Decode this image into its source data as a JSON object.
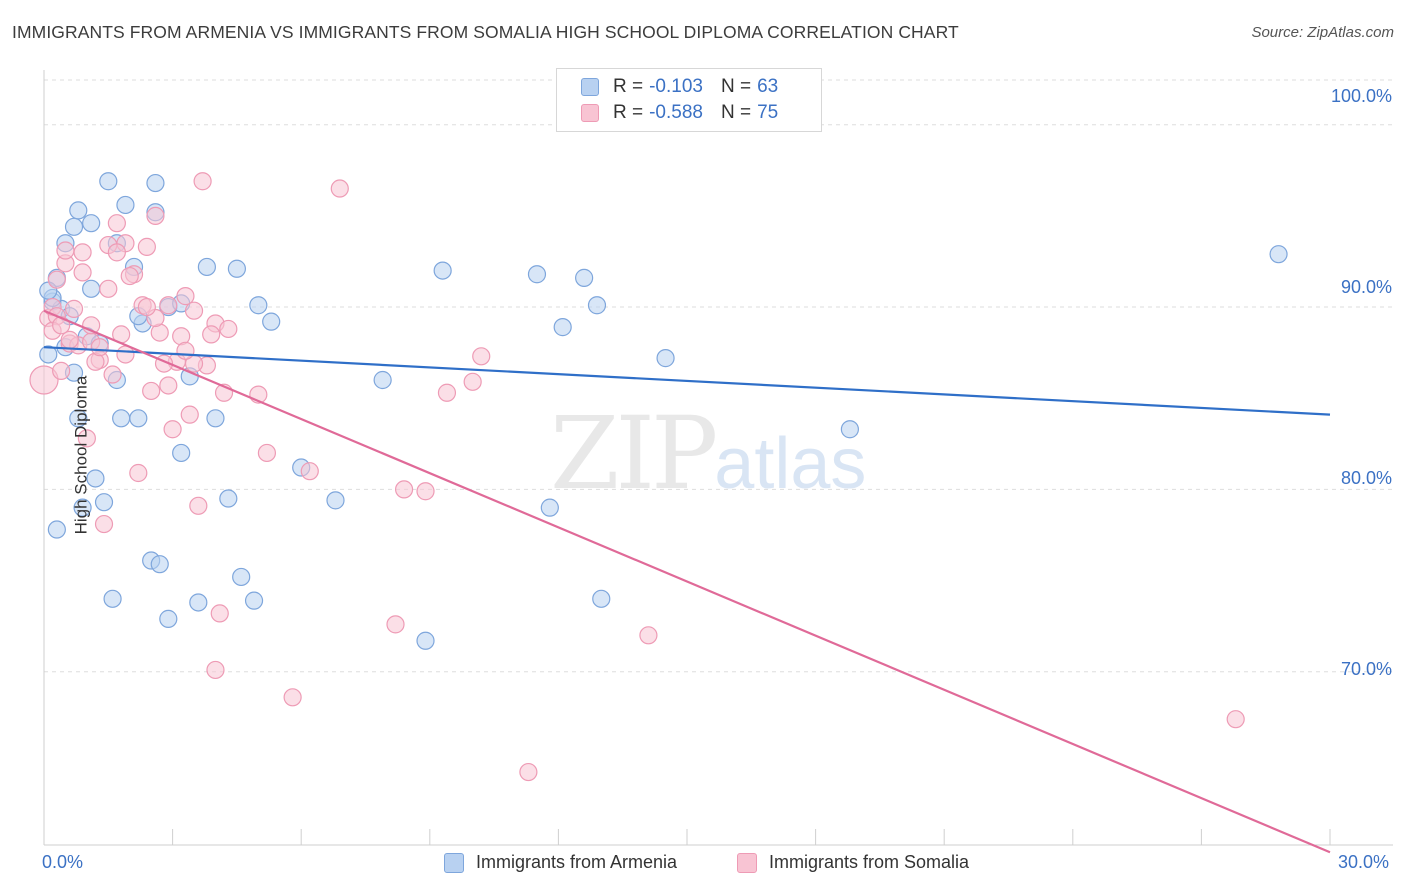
{
  "title": "IMMIGRANTS FROM ARMENIA VS IMMIGRANTS FROM SOMALIA HIGH SCHOOL DIPLOMA CORRELATION CHART",
  "source": "Source: ZipAtlas.com",
  "watermark": {
    "zip": "ZIP",
    "atlas": "atlas"
  },
  "legend": {
    "armenia": {
      "r_label": "R =",
      "r_value": "-0.103",
      "n_label": "N =",
      "n_value": "63",
      "name": "Immigrants from Armenia"
    },
    "somalia": {
      "r_label": "R =",
      "r_value": "-0.588",
      "n_label": "N =",
      "n_value": "75",
      "name": "Immigrants from Somalia"
    }
  },
  "colors": {
    "armenia_fill": "#b8d1f1",
    "armenia_stroke": "#7ea6dc",
    "armenia_line": "#2f6fc8",
    "somalia_fill": "#f8c4d3",
    "somalia_stroke": "#ee9bb5",
    "somalia_line": "#e06a98",
    "tick_text": "#3b71c4",
    "grid": "#dddddd"
  },
  "chart_data": {
    "type": "scatter",
    "title": "IMMIGRANTS FROM ARMENIA VS IMMIGRANTS FROM SOMALIA HIGH SCHOOL DIPLOMA CORRELATION CHART",
    "xlabel": "",
    "ylabel": "High School Diploma",
    "xlim": [
      0,
      30
    ],
    "ylim": [
      60.5,
      103
    ],
    "x_tick_labels": [
      "0.0%",
      "30.0%"
    ],
    "y_ticks": [
      70,
      80,
      90,
      100
    ],
    "y_tick_labels": [
      "70.0%",
      "80.0%",
      "90.0%",
      "100.0%"
    ],
    "grid": true,
    "legend_position": "top-center",
    "series": [
      {
        "name": "Immigrants from Armenia",
        "trend": [
          [
            0,
            87.8
          ],
          [
            30,
            84.1
          ]
        ],
        "points": [
          [
            0.1,
            87.4
          ],
          [
            0.2,
            90.3
          ],
          [
            0.3,
            91.6
          ],
          [
            0.4,
            89.9
          ],
          [
            0.5,
            93.5
          ],
          [
            0.5,
            87.8
          ],
          [
            0.6,
            89.5
          ],
          [
            0.7,
            94.4
          ],
          [
            0.8,
            95.3
          ],
          [
            1.0,
            88.4
          ],
          [
            1.1,
            94.6
          ],
          [
            1.1,
            91.0
          ],
          [
            1.3,
            88.0
          ],
          [
            1.5,
            96.9
          ],
          [
            1.7,
            93.5
          ],
          [
            1.9,
            95.6
          ],
          [
            2.1,
            92.2
          ],
          [
            2.3,
            89.1
          ],
          [
            2.6,
            96.8
          ],
          [
            2.9,
            90.0
          ],
          [
            3.2,
            90.2
          ],
          [
            3.8,
            92.2
          ],
          [
            4.5,
            92.1
          ],
          [
            5.0,
            90.1
          ],
          [
            5.3,
            89.2
          ],
          [
            0.2,
            90.5
          ],
          [
            0.8,
            83.9
          ],
          [
            1.2,
            80.6
          ],
          [
            1.4,
            79.3
          ],
          [
            1.8,
            83.9
          ],
          [
            2.2,
            83.9
          ],
          [
            2.5,
            76.1
          ],
          [
            2.7,
            75.9
          ],
          [
            2.9,
            72.9
          ],
          [
            3.2,
            82.0
          ],
          [
            3.6,
            73.8
          ],
          [
            4.0,
            83.9
          ],
          [
            4.3,
            79.5
          ],
          [
            4.6,
            75.2
          ],
          [
            6.0,
            81.2
          ],
          [
            7.9,
            86.0
          ],
          [
            8.9,
            71.7
          ],
          [
            9.3,
            92.0
          ],
          [
            11.5,
            91.8
          ],
          [
            11.8,
            79.0
          ],
          [
            12.1,
            88.9
          ],
          [
            12.6,
            91.6
          ],
          [
            12.9,
            90.1
          ],
          [
            13.0,
            74.0
          ],
          [
            14.5,
            87.2
          ],
          [
            18.8,
            83.3
          ],
          [
            28.8,
            92.9
          ],
          [
            0.1,
            90.9
          ],
          [
            1.7,
            86.0
          ],
          [
            2.2,
            89.5
          ],
          [
            0.9,
            79.0
          ],
          [
            3.4,
            86.2
          ],
          [
            0.3,
            77.8
          ],
          [
            4.9,
            73.9
          ],
          [
            2.6,
            95.2
          ],
          [
            0.7,
            86.4
          ],
          [
            1.6,
            74.0
          ],
          [
            6.8,
            79.4
          ]
        ]
      },
      {
        "name": "Immigrants from Somalia",
        "trend": [
          [
            0,
            89.8
          ],
          [
            30,
            60.1
          ]
        ],
        "points": [
          [
            0.0,
            86.0
          ],
          [
            0.1,
            89.4
          ],
          [
            0.2,
            90.0
          ],
          [
            0.3,
            89.5
          ],
          [
            0.5,
            92.4
          ],
          [
            0.6,
            88.0
          ],
          [
            0.8,
            87.9
          ],
          [
            0.9,
            93.0
          ],
          [
            1.1,
            88.1
          ],
          [
            1.3,
            87.1
          ],
          [
            1.5,
            93.4
          ],
          [
            1.7,
            94.6
          ],
          [
            1.9,
            93.5
          ],
          [
            2.1,
            91.8
          ],
          [
            2.3,
            90.1
          ],
          [
            2.4,
            93.3
          ],
          [
            2.6,
            95.0
          ],
          [
            2.9,
            90.1
          ],
          [
            3.1,
            87.0
          ],
          [
            3.3,
            90.6
          ],
          [
            3.5,
            89.8
          ],
          [
            3.7,
            96.9
          ],
          [
            4.0,
            89.1
          ],
          [
            4.2,
            85.3
          ],
          [
            0.4,
            86.5
          ],
          [
            0.6,
            88.2
          ],
          [
            1.0,
            82.8
          ],
          [
            1.2,
            87.0
          ],
          [
            1.4,
            78.1
          ],
          [
            1.6,
            86.3
          ],
          [
            1.9,
            87.4
          ],
          [
            2.2,
            80.9
          ],
          [
            2.5,
            85.4
          ],
          [
            2.7,
            88.6
          ],
          [
            3.0,
            83.3
          ],
          [
            3.2,
            88.4
          ],
          [
            3.4,
            84.1
          ],
          [
            3.6,
            79.1
          ],
          [
            3.8,
            86.8
          ],
          [
            4.1,
            73.2
          ],
          [
            4.3,
            88.8
          ],
          [
            5.0,
            85.2
          ],
          [
            5.2,
            82.0
          ],
          [
            6.2,
            81.0
          ],
          [
            6.9,
            96.5
          ],
          [
            8.2,
            72.6
          ],
          [
            8.4,
            80.0
          ],
          [
            8.9,
            79.9
          ],
          [
            9.4,
            85.3
          ],
          [
            10.0,
            85.9
          ],
          [
            10.2,
            87.3
          ],
          [
            11.3,
            64.5
          ],
          [
            14.1,
            72.0
          ],
          [
            27.8,
            67.4
          ],
          [
            4.0,
            70.1
          ],
          [
            5.8,
            68.6
          ],
          [
            0.3,
            91.5
          ],
          [
            0.9,
            91.9
          ],
          [
            1.8,
            88.5
          ],
          [
            2.8,
            86.9
          ],
          [
            3.5,
            86.9
          ],
          [
            0.5,
            93.1
          ],
          [
            1.1,
            89.0
          ],
          [
            2.0,
            91.7
          ],
          [
            2.6,
            89.4
          ],
          [
            3.3,
            87.6
          ],
          [
            0.2,
            88.7
          ],
          [
            0.7,
            89.9
          ],
          [
            1.5,
            91.0
          ],
          [
            3.9,
            88.5
          ],
          [
            2.4,
            90.0
          ],
          [
            1.3,
            87.8
          ],
          [
            0.4,
            89.0
          ],
          [
            2.9,
            85.7
          ],
          [
            1.7,
            93.0
          ]
        ]
      }
    ]
  }
}
